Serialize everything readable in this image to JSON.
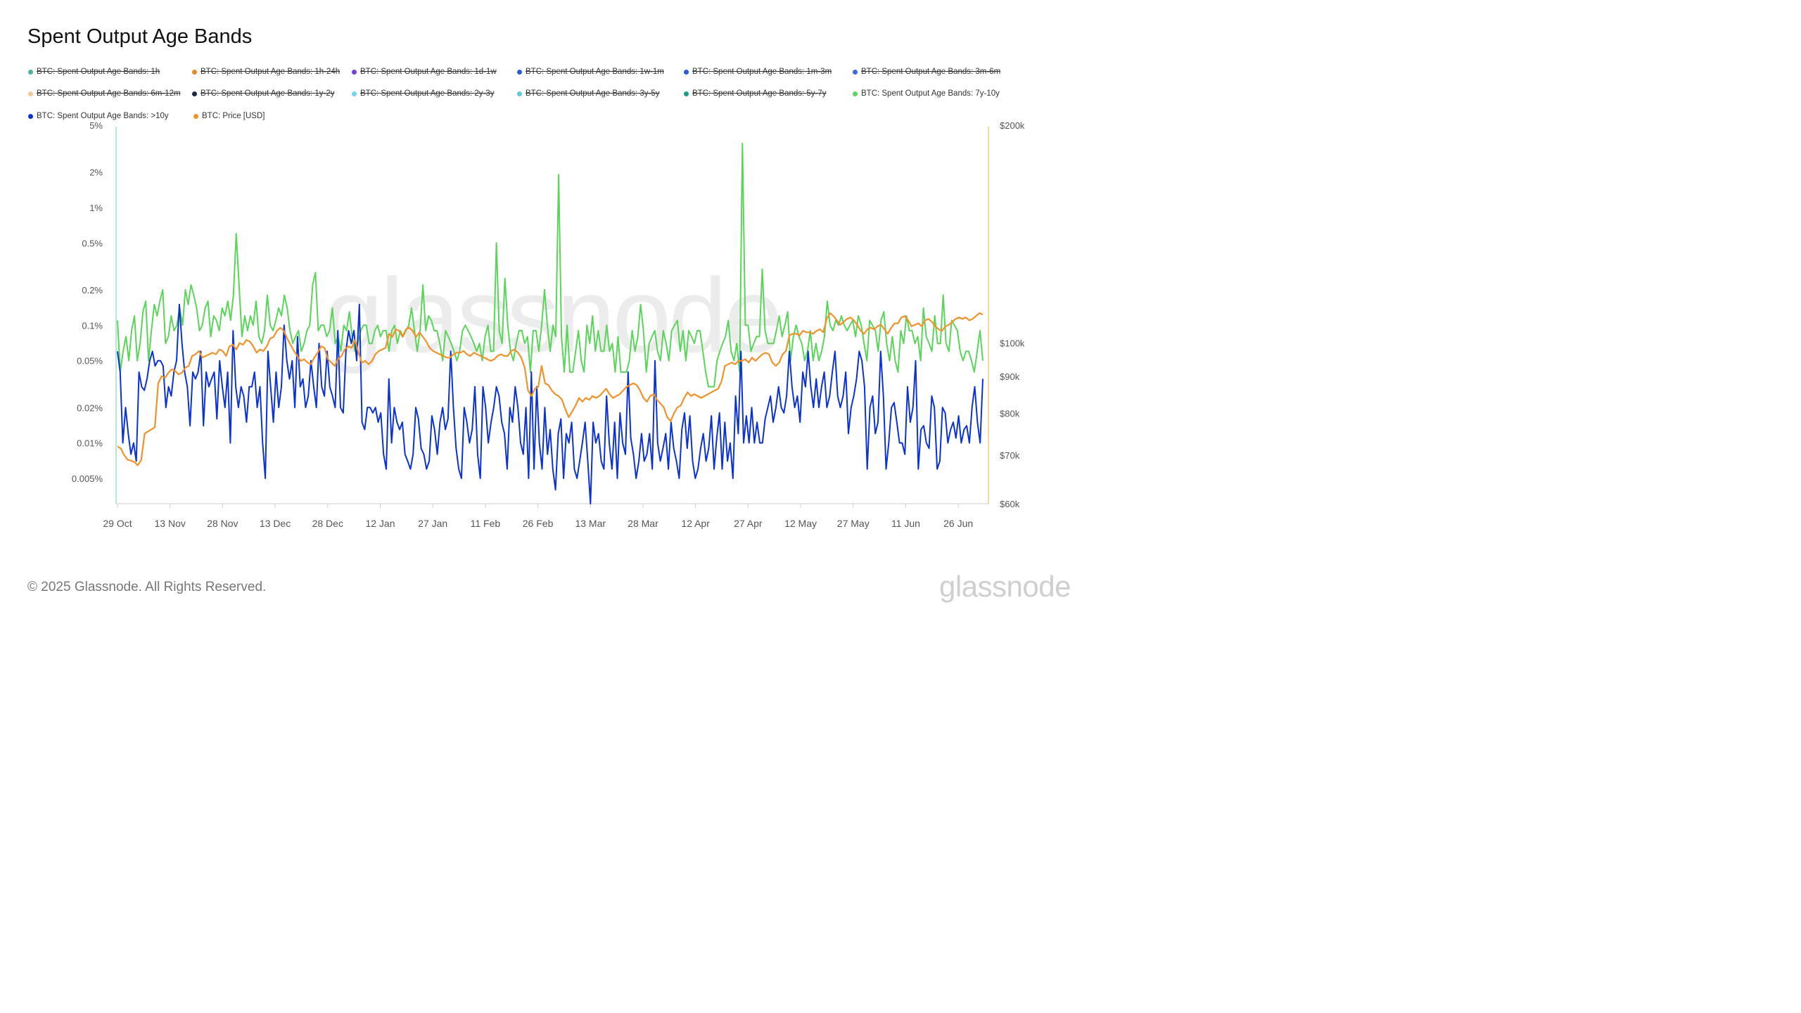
{
  "title": "Spent Output Age Bands",
  "footer": "© 2025 Glassnode. All Rights Reserved.",
  "brand": "glassnode",
  "watermark": "glassnode",
  "legend": [
    {
      "label": "BTC: Spent Output Age Bands: 1h",
      "color": "#4ab3a3",
      "active": false
    },
    {
      "label": "BTC: Spent Output Age Bands: 1h-24h",
      "color": "#e9862a",
      "active": false
    },
    {
      "label": "BTC: Spent Output Age Bands: 1d-1w",
      "color": "#7a3fd6",
      "active": false
    },
    {
      "label": "BTC: Spent Output Age Bands: 1w-1m",
      "color": "#2a5bd7",
      "active": false
    },
    {
      "label": "BTC: Spent Output Age Bands: 1m-3m",
      "color": "#2a5bd7",
      "active": false
    },
    {
      "label": "BTC: Spent Output Age Bands: 3m-6m",
      "color": "#3a6be0",
      "active": false
    },
    {
      "label": "BTC: Spent Output Age Bands: 6m-12m",
      "color": "#f2c89a",
      "active": false
    },
    {
      "label": "BTC: Spent Output Age Bands: 1y-2y",
      "color": "#1d2a44",
      "active": false
    },
    {
      "label": "BTC: Spent Output Age Bands: 2y-3y",
      "color": "#74d3ef",
      "active": false
    },
    {
      "label": "BTC: Spent Output Age Bands: 3y-5y",
      "color": "#5fc9dd",
      "active": false
    },
    {
      "label": "BTC: Spent Output Age Bands: 5y-7y",
      "color": "#1a9a8a",
      "active": false
    },
    {
      "label": "BTC: Spent Output Age Bands: 7y-10y",
      "color": "#5ad55a",
      "active": true
    },
    {
      "label": "BTC: Spent Output Age Bands: >10y",
      "color": "#0b32d6",
      "active": true
    },
    {
      "label": "BTC: Price [USD]",
      "color": "#f0922a",
      "active": true
    }
  ],
  "chart_data": {
    "type": "line",
    "x_start": "2024-10-29",
    "x_end": "2025-07-03",
    "x_ticks": [
      "29 Oct",
      "13 Nov",
      "28 Nov",
      "13 Dec",
      "28 Dec",
      "12 Jan",
      "27 Jan",
      "11 Feb",
      "26 Feb",
      "13 Mar",
      "28 Mar",
      "12 Apr",
      "27 Apr",
      "12 May",
      "27 May",
      "11 Jun",
      "26 Jun"
    ],
    "y_left": {
      "scale": "log",
      "ticks": [
        "5%",
        "2%",
        "1%",
        "0.5%",
        "0.2%",
        "0.1%",
        "0.05%",
        "0.02%",
        "0.01%",
        "0.005%"
      ],
      "range_pct": [
        0.003,
        5
      ]
    },
    "y_right": {
      "scale": "log",
      "ticks": [
        "$200k",
        "$100k",
        "$90k",
        "$80k",
        "$70k",
        "$60k"
      ],
      "range_usd": [
        60000,
        200000
      ]
    },
    "grid": false,
    "legend_position": "top",
    "series": [
      {
        "name": "BTC: Spent Output Age Bands: 7y-10y",
        "color": "#5ad55a",
        "axis": "left",
        "unit": "%",
        "values": [
          0.11,
          0.04,
          0.06,
          0.08,
          0.05,
          0.09,
          0.12,
          0.05,
          0.07,
          0.13,
          0.16,
          0.05,
          0.09,
          0.15,
          0.12,
          0.16,
          0.2,
          0.07,
          0.08,
          0.12,
          0.09,
          0.1,
          0.14,
          0.1,
          0.2,
          0.15,
          0.22,
          0.18,
          0.14,
          0.09,
          0.1,
          0.14,
          0.16,
          0.08,
          0.12,
          0.11,
          0.09,
          0.14,
          0.12,
          0.16,
          0.11,
          0.18,
          0.6,
          0.22,
          0.08,
          0.12,
          0.09,
          0.12,
          0.1,
          0.16,
          0.08,
          0.07,
          0.09,
          0.18,
          0.1,
          0.09,
          0.11,
          0.14,
          0.12,
          0.18,
          0.14,
          0.09,
          0.07,
          0.08,
          0.09,
          0.06,
          0.07,
          0.09,
          0.1,
          0.22,
          0.28,
          0.09,
          0.1,
          0.1,
          0.08,
          0.09,
          0.14,
          0.07,
          0.08,
          0.06,
          0.1,
          0.09,
          0.13,
          0.08,
          0.06,
          0.07,
          0.09,
          0.1,
          0.1,
          0.07,
          0.07,
          0.09,
          0.1,
          0.08,
          0.09,
          0.09,
          0.06,
          0.09,
          0.1,
          0.07,
          0.09,
          0.08,
          0.09,
          0.1,
          0.14,
          0.09,
          0.06,
          0.09,
          0.22,
          0.09,
          0.12,
          0.11,
          0.09,
          0.09,
          0.07,
          0.05,
          0.09,
          0.08,
          0.07,
          0.06,
          0.05,
          0.06,
          0.09,
          0.1,
          0.09,
          0.08,
          0.07,
          0.06,
          0.07,
          0.05,
          0.08,
          0.1,
          0.06,
          0.06,
          0.5,
          0.09,
          0.07,
          0.25,
          0.1,
          0.06,
          0.05,
          0.07,
          0.09,
          0.09,
          0.07,
          0.08,
          0.04,
          0.09,
          0.09,
          0.06,
          0.1,
          0.2,
          0.1,
          0.06,
          0.1,
          0.08,
          1.9,
          0.08,
          0.04,
          0.1,
          0.04,
          0.04,
          0.06,
          0.09,
          0.05,
          0.04,
          0.1,
          0.07,
          0.12,
          0.06,
          0.09,
          0.06,
          0.06,
          0.1,
          0.06,
          0.07,
          0.04,
          0.08,
          0.04,
          0.04,
          0.04,
          0.05,
          0.09,
          0.06,
          0.08,
          0.15,
          0.09,
          0.04,
          0.07,
          0.08,
          0.09,
          0.06,
          0.05,
          0.09,
          0.07,
          0.05,
          0.09,
          0.1,
          0.11,
          0.06,
          0.09,
          0.05,
          0.09,
          0.08,
          0.07,
          0.09,
          0.09,
          0.06,
          0.04,
          0.03,
          0.03,
          0.03,
          0.05,
          0.06,
          0.07,
          0.08,
          0.11,
          0.06,
          0.05,
          0.07,
          0.04,
          3.5,
          0.1,
          0.1,
          0.06,
          0.07,
          0.08,
          0.08,
          0.3,
          0.09,
          0.07,
          0.07,
          0.07,
          0.09,
          0.12,
          0.08,
          0.1,
          0.13,
          0.05,
          0.08,
          0.1,
          0.08,
          0.07,
          0.05,
          0.06,
          0.09,
          0.05,
          0.07,
          0.05,
          0.06,
          0.08,
          0.16,
          0.1,
          0.09,
          0.11,
          0.1,
          0.12,
          0.1,
          0.09,
          0.1,
          0.11,
          0.08,
          0.12,
          0.1,
          0.07,
          0.05,
          0.11,
          0.1,
          0.09,
          0.06,
          0.11,
          0.13,
          0.07,
          0.05,
          0.08,
          0.05,
          0.04,
          0.09,
          0.07,
          0.12,
          0.09,
          0.09,
          0.07,
          0.08,
          0.05,
          0.14,
          0.08,
          0.07,
          0.06,
          0.12,
          0.07,
          0.07,
          0.18,
          0.07,
          0.06,
          0.11,
          0.1,
          0.09,
          0.06,
          0.05,
          0.06,
          0.06,
          0.05,
          0.04,
          0.06,
          0.09,
          0.05
        ]
      },
      {
        "name": "BTC: Spent Output Age Bands: >10y",
        "color": "#0b32d6",
        "axis": "left",
        "unit": "%",
        "values": [
          0.06,
          0.04,
          0.01,
          0.02,
          0.012,
          0.008,
          0.01,
          0.007,
          0.04,
          0.03,
          0.028,
          0.035,
          0.05,
          0.06,
          0.045,
          0.05,
          0.05,
          0.045,
          0.02,
          0.03,
          0.025,
          0.04,
          0.05,
          0.15,
          0.07,
          0.04,
          0.03,
          0.014,
          0.04,
          0.035,
          0.04,
          0.06,
          0.014,
          0.04,
          0.03,
          0.035,
          0.04,
          0.016,
          0.05,
          0.03,
          0.02,
          0.04,
          0.01,
          0.09,
          0.03,
          0.02,
          0.03,
          0.025,
          0.015,
          0.03,
          0.03,
          0.04,
          0.02,
          0.03,
          0.01,
          0.005,
          0.06,
          0.03,
          0.015,
          0.04,
          0.02,
          0.03,
          0.1,
          0.05,
          0.035,
          0.05,
          0.02,
          0.08,
          0.03,
          0.035,
          0.02,
          0.025,
          0.05,
          0.03,
          0.02,
          0.07,
          0.03,
          0.025,
          0.06,
          0.03,
          0.025,
          0.02,
          0.09,
          0.02,
          0.018,
          0.06,
          0.09,
          0.07,
          0.09,
          0.05,
          0.15,
          0.015,
          0.013,
          0.02,
          0.02,
          0.018,
          0.02,
          0.015,
          0.018,
          0.008,
          0.006,
          0.035,
          0.01,
          0.02,
          0.015,
          0.013,
          0.015,
          0.008,
          0.007,
          0.006,
          0.008,
          0.02,
          0.016,
          0.009,
          0.008,
          0.006,
          0.007,
          0.017,
          0.013,
          0.008,
          0.015,
          0.02,
          0.013,
          0.016,
          0.06,
          0.02,
          0.009,
          0.006,
          0.005,
          0.02,
          0.015,
          0.01,
          0.013,
          0.03,
          0.008,
          0.005,
          0.03,
          0.02,
          0.01,
          0.015,
          0.02,
          0.03,
          0.025,
          0.015,
          0.012,
          0.006,
          0.02,
          0.015,
          0.03,
          0.02,
          0.01,
          0.008,
          0.02,
          0.005,
          0.04,
          0.006,
          0.03,
          0.01,
          0.006,
          0.02,
          0.008,
          0.013,
          0.006,
          0.004,
          0.012,
          0.016,
          0.005,
          0.012,
          0.01,
          0.015,
          0.006,
          0.005,
          0.007,
          0.01,
          0.015,
          0.007,
          0.003,
          0.015,
          0.01,
          0.012,
          0.007,
          0.006,
          0.025,
          0.01,
          0.006,
          0.015,
          0.005,
          0.018,
          0.01,
          0.008,
          0.04,
          0.011,
          0.008,
          0.005,
          0.007,
          0.012,
          0.007,
          0.008,
          0.012,
          0.006,
          0.05,
          0.01,
          0.007,
          0.009,
          0.012,
          0.006,
          0.015,
          0.009,
          0.007,
          0.005,
          0.013,
          0.018,
          0.009,
          0.017,
          0.007,
          0.005,
          0.006,
          0.009,
          0.012,
          0.007,
          0.009,
          0.017,
          0.006,
          0.011,
          0.018,
          0.006,
          0.015,
          0.007,
          0.01,
          0.005,
          0.025,
          0.012,
          0.06,
          0.01,
          0.017,
          0.01,
          0.02,
          0.01,
          0.015,
          0.01,
          0.01,
          0.016,
          0.02,
          0.025,
          0.015,
          0.02,
          0.03,
          0.02,
          0.018,
          0.025,
          0.06,
          0.03,
          0.02,
          0.025,
          0.015,
          0.04,
          0.03,
          0.06,
          0.03,
          0.02,
          0.035,
          0.02,
          0.03,
          0.04,
          0.02,
          0.025,
          0.04,
          0.06,
          0.025,
          0.02,
          0.025,
          0.04,
          0.012,
          0.02,
          0.025,
          0.035,
          0.06,
          0.05,
          0.03,
          0.006,
          0.02,
          0.025,
          0.012,
          0.015,
          0.06,
          0.025,
          0.006,
          0.01,
          0.02,
          0.022,
          0.015,
          0.01,
          0.01,
          0.008,
          0.03,
          0.015,
          0.02,
          0.05,
          0.006,
          0.013,
          0.014,
          0.01,
          0.009,
          0.025,
          0.02,
          0.006,
          0.007,
          0.02,
          0.018,
          0.01,
          0.013,
          0.015,
          0.011,
          0.017,
          0.01,
          0.013,
          0.014,
          0.01,
          0.02,
          0.03,
          0.015,
          0.01,
          0.035
        ]
      },
      {
        "name": "BTC: Price [USD]",
        "color": "#f0922a",
        "axis": "right",
        "unit": "USD",
        "values": [
          72000,
          71500,
          70000,
          69000,
          68800,
          68500,
          67800,
          69000,
          75000,
          75500,
          76000,
          76500,
          88000,
          90000,
          89500,
          91000,
          92000,
          91500,
          90500,
          91000,
          92500,
          93000,
          96000,
          96500,
          97500,
          95500,
          96000,
          96500,
          97000,
          96500,
          98000,
          97500,
          96000,
          99000,
          99500,
          98000,
          100000,
          99500,
          101000,
          100500,
          99000,
          97000,
          98000,
          97500,
          99000,
          101500,
          102000,
          104000,
          105000,
          104000,
          101500,
          99500,
          97500,
          96000,
          94500,
          95000,
          94000,
          93500,
          95500,
          97000,
          99000,
          98500,
          95000,
          94000,
          93000,
          95000,
          96000,
          98000,
          99000,
          98500,
          101000,
          97000,
          94000,
          94500,
          93500,
          94500,
          96500,
          97500,
          98000,
          98500,
          103000,
          102000,
          104500,
          104000,
          102000,
          104500,
          105000,
          104000,
          102000,
          103500,
          102000,
          100500,
          98500,
          97500,
          97000,
          96500,
          96000,
          95500,
          95500,
          96500,
          97000,
          97000,
          97500,
          96500,
          96000,
          97000,
          96500,
          96000,
          95500,
          95000,
          94500,
          95000,
          96000,
          96500,
          96000,
          96000,
          97500,
          98000,
          97000,
          95500,
          92500,
          86000,
          84500,
          86500,
          87000,
          93000,
          88000,
          87500,
          86000,
          85000,
          84500,
          83500,
          81000,
          79000,
          80500,
          82000,
          84000,
          83000,
          84000,
          83500,
          84500,
          84000,
          84500,
          85500,
          86500,
          85000,
          84000,
          84500,
          85000,
          86000,
          87000,
          87500,
          88000,
          87500,
          86000,
          84000,
          83000,
          84500,
          85000,
          83500,
          82500,
          81500,
          79000,
          78000,
          80000,
          81500,
          82000,
          84000,
          85500,
          84500,
          85000,
          84500,
          84000,
          84500,
          85000,
          85500,
          86000,
          86500,
          88500,
          93000,
          93500,
          94000,
          93500,
          94500,
          94500,
          95000,
          94000,
          95500,
          94500,
          95500,
          96500,
          97000,
          96500,
          94000,
          93000,
          94000,
          96500,
          97500,
          102500,
          103000,
          103000,
          102500,
          104000,
          103500,
          103500,
          103000,
          104000,
          104500,
          103500,
          108000,
          110000,
          109000,
          107500,
          106000,
          107000,
          108000,
          108500,
          107500,
          106000,
          104000,
          103000,
          104500,
          105000,
          104500,
          105500,
          106000,
          104500,
          103000,
          105000,
          106500,
          106500,
          108500,
          109000,
          107500,
          105500,
          106000,
          106500,
          105500,
          107500,
          108000,
          107000,
          105500,
          104500,
          104000,
          105500,
          106000,
          107000,
          108000,
          108500,
          108000,
          108500,
          107500,
          108000,
          109000,
          110000,
          109500
        ]
      }
    ]
  }
}
